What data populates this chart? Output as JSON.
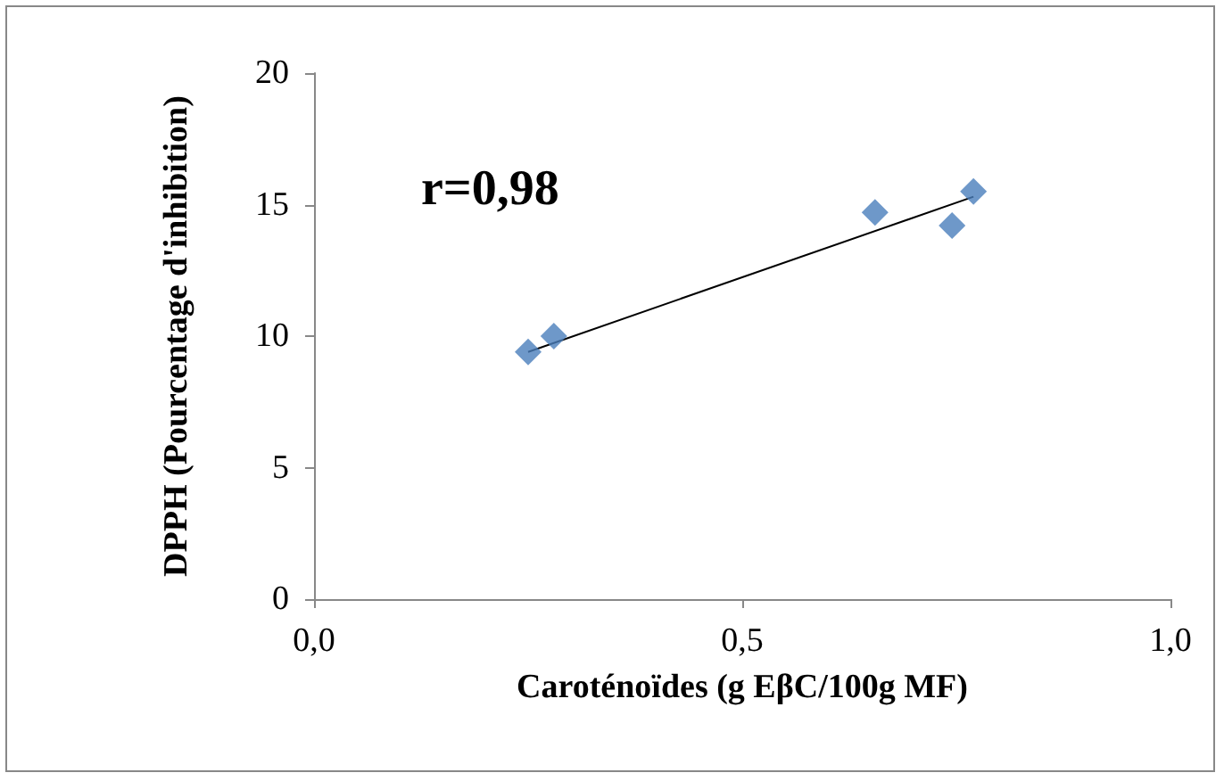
{
  "chart_data": {
    "type": "scatter",
    "xlabel": "Caroténoïdes (g EβC/100g MF)",
    "ylabel": "DPPH (Pourcentage d'inhibition)",
    "annotations": [
      "r=0,98"
    ],
    "xlim": [
      0,
      1
    ],
    "xticks": [
      {
        "value": 0,
        "label": "0,0"
      },
      {
        "value": 0.5,
        "label": "0,5"
      },
      {
        "value": 1,
        "label": "1,0"
      }
    ],
    "ylim": [
      0,
      20
    ],
    "yticks": [
      0,
      5,
      10,
      15,
      20
    ],
    "grid": false,
    "marker": "diamond",
    "series": [
      {
        "color": "#4a7ebb",
        "x": [
          0.25,
          0.28,
          0.655,
          0.745,
          0.77
        ],
        "values": [
          9.4,
          10.0,
          14.7,
          14.2,
          15.5
        ]
      },
      {
        "type": "line",
        "color": "#000000",
        "x": [
          0.25,
          0.77
        ],
        "values": [
          9.4,
          15.3
        ],
        "marker": "none",
        "line_style": "solid"
      }
    ]
  }
}
